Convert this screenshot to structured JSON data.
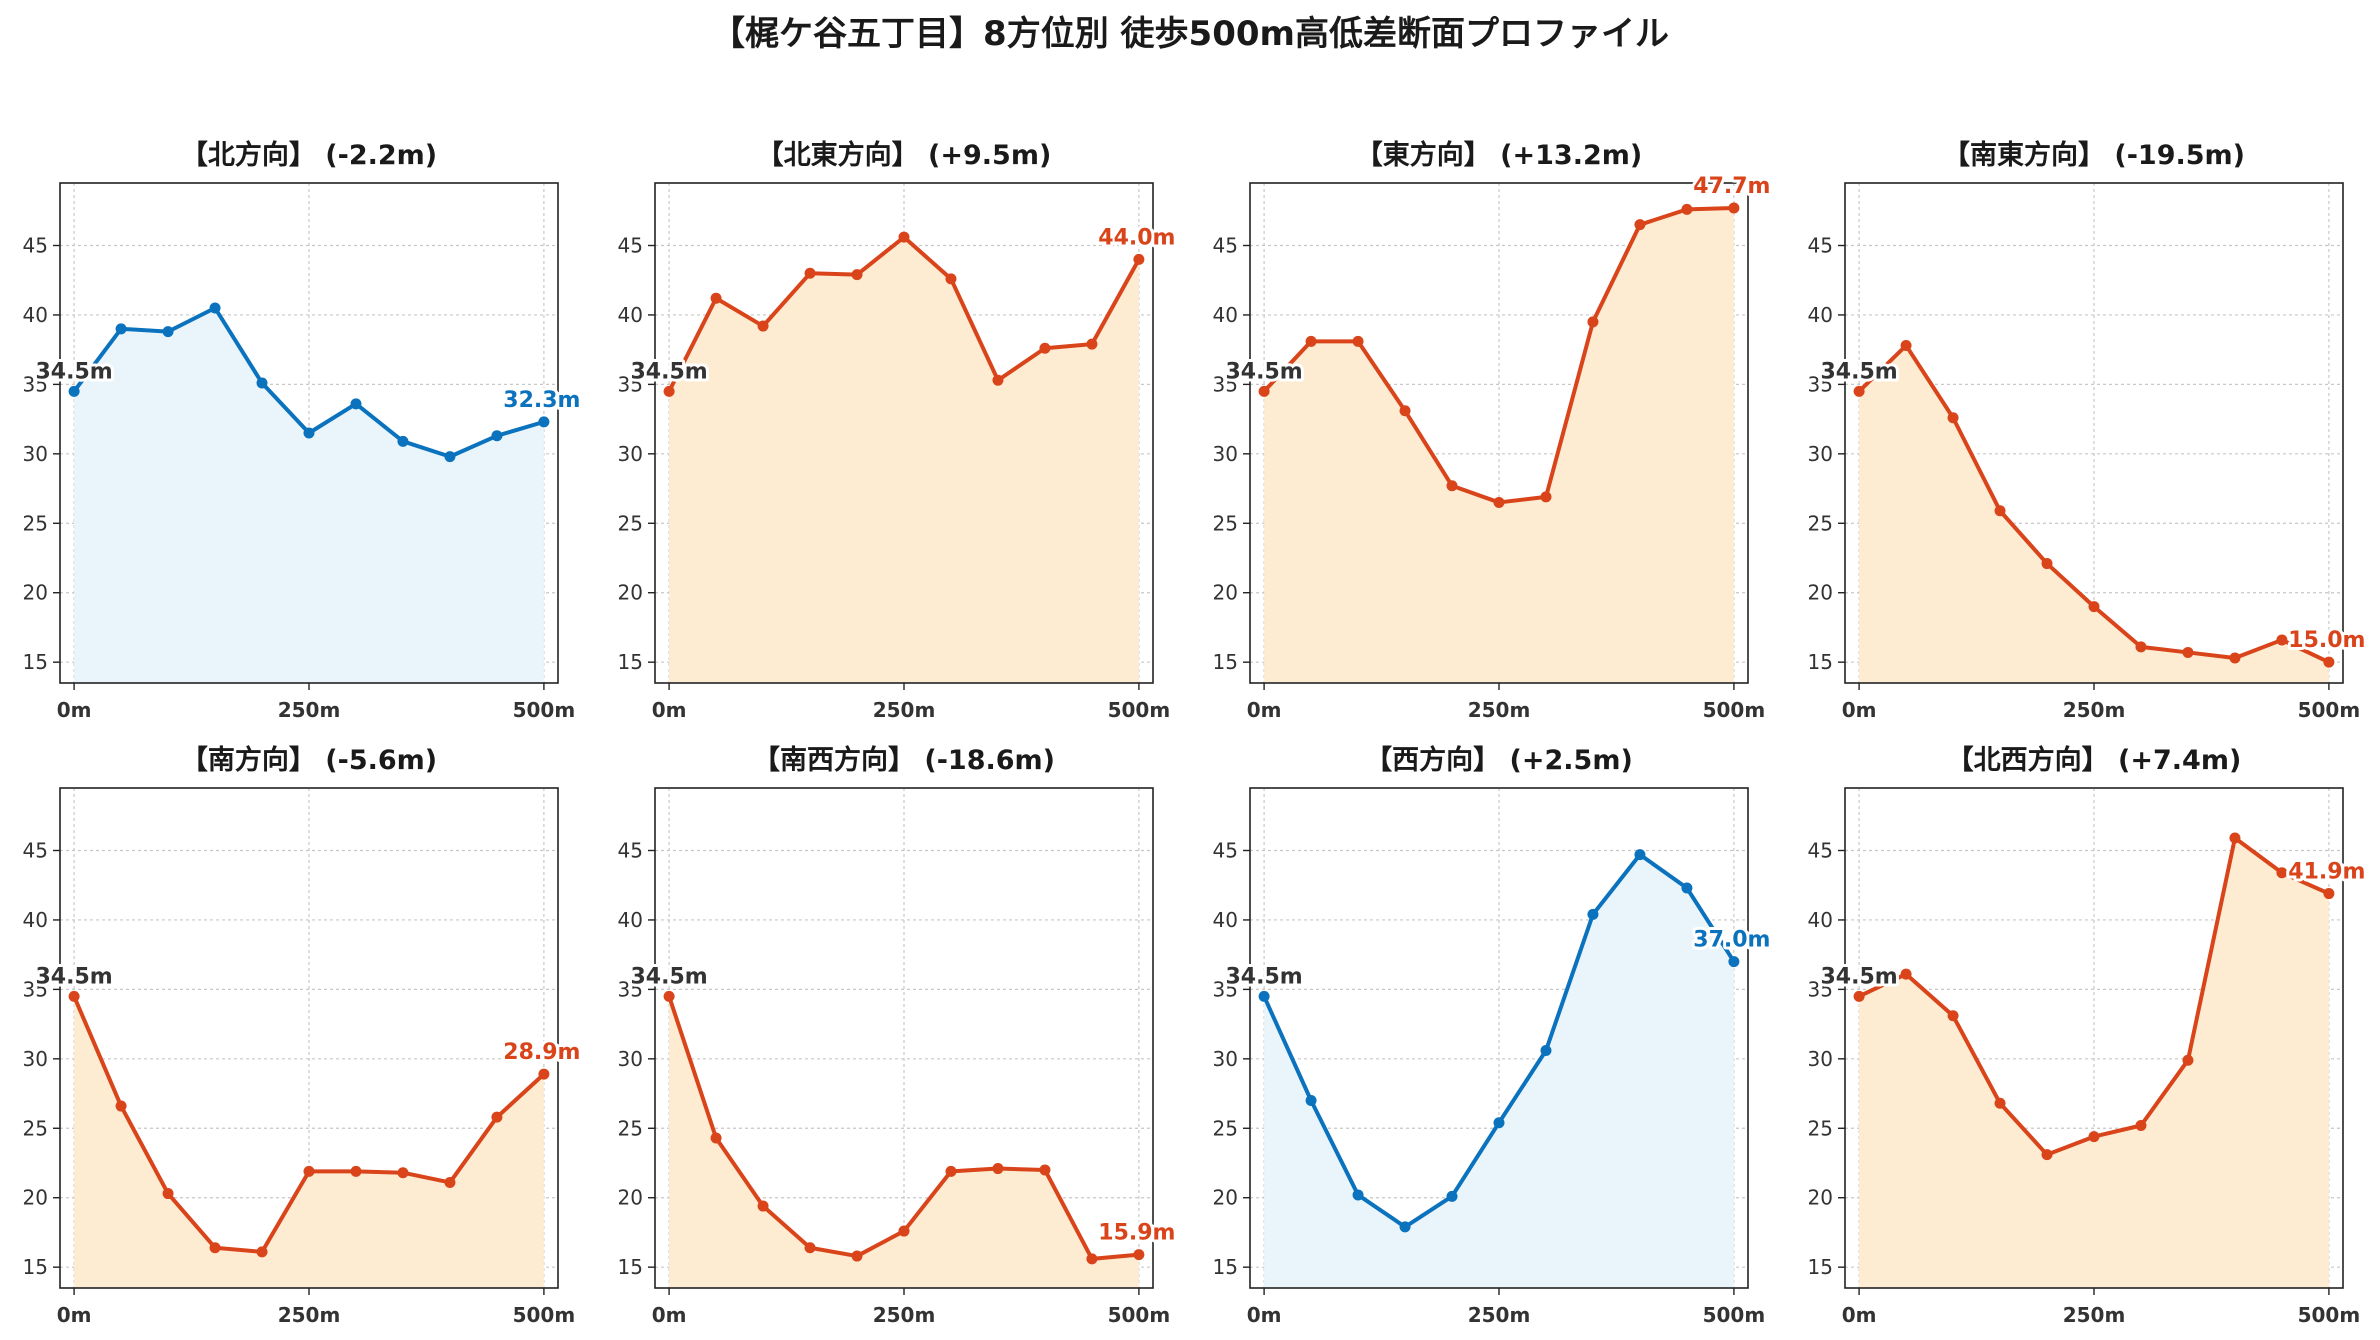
{
  "title": "【梶ケ谷五丁目】8方位別 徒歩500m高低差断面プロファイル",
  "colors": {
    "up_line": "#d9441a",
    "up_fill": "#fdecd2",
    "down_line": "#0b72bd",
    "down_fill": "#e9f5fb",
    "start_label": "#333333",
    "grid": "#c8c8c8"
  },
  "chart_data": [
    {
      "type": "line",
      "title": "【北方向】 (-2.2m)",
      "x": [
        0,
        50,
        100,
        150,
        200,
        250,
        300,
        350,
        400,
        450,
        500
      ],
      "values": [
        34.5,
        39.0,
        38.8,
        40.5,
        35.1,
        31.5,
        33.6,
        30.9,
        29.8,
        31.3,
        32.3
      ],
      "start_label": "34.5m",
      "end_label": "32.3m",
      "style": "down",
      "xticks": [
        "0m",
        "250m",
        "500m"
      ],
      "yticks": [
        "15",
        "20",
        "25",
        "30",
        "35",
        "40",
        "45"
      ],
      "ylim": [
        13.5,
        49.5
      ],
      "xlim": [
        -15,
        515
      ],
      "grid": true
    },
    {
      "type": "line",
      "title": "【北東方向】 (+9.5m)",
      "x": [
        0,
        50,
        100,
        150,
        200,
        250,
        300,
        350,
        400,
        450,
        500
      ],
      "values": [
        34.5,
        41.2,
        39.2,
        43.0,
        42.9,
        45.6,
        42.6,
        35.3,
        37.6,
        37.9,
        44.0
      ],
      "start_label": "34.5m",
      "end_label": "44.0m",
      "style": "up",
      "xticks": [
        "0m",
        "250m",
        "500m"
      ],
      "yticks": [
        "15",
        "20",
        "25",
        "30",
        "35",
        "40",
        "45"
      ],
      "ylim": [
        13.5,
        49.5
      ],
      "xlim": [
        -15,
        515
      ],
      "grid": true
    },
    {
      "type": "line",
      "title": "【東方向】 (+13.2m)",
      "x": [
        0,
        50,
        100,
        150,
        200,
        250,
        300,
        350,
        400,
        450,
        500
      ],
      "values": [
        34.5,
        38.1,
        38.1,
        33.1,
        27.7,
        26.5,
        26.9,
        39.5,
        46.5,
        47.6,
        47.7
      ],
      "start_label": "34.5m",
      "end_label": "47.7m",
      "style": "up",
      "xticks": [
        "0m",
        "250m",
        "500m"
      ],
      "yticks": [
        "15",
        "20",
        "25",
        "30",
        "35",
        "40",
        "45"
      ],
      "ylim": [
        13.5,
        49.5
      ],
      "xlim": [
        -15,
        515
      ],
      "grid": true
    },
    {
      "type": "line",
      "title": "【南東方向】 (-19.5m)",
      "x": [
        0,
        50,
        100,
        150,
        200,
        250,
        300,
        350,
        400,
        450,
        500
      ],
      "values": [
        34.5,
        37.8,
        32.6,
        25.9,
        22.1,
        19.0,
        16.1,
        15.7,
        15.3,
        16.6,
        15.0
      ],
      "start_label": "34.5m",
      "end_label": "15.0m",
      "style": "up",
      "xticks": [
        "0m",
        "250m",
        "500m"
      ],
      "yticks": [
        "15",
        "20",
        "25",
        "30",
        "35",
        "40",
        "45"
      ],
      "ylim": [
        13.5,
        49.5
      ],
      "xlim": [
        -15,
        515
      ],
      "grid": true
    },
    {
      "type": "line",
      "title": "【南方向】 (-5.6m)",
      "x": [
        0,
        50,
        100,
        150,
        200,
        250,
        300,
        350,
        400,
        450,
        500
      ],
      "values": [
        34.5,
        26.6,
        20.3,
        16.4,
        16.1,
        21.9,
        21.9,
        21.8,
        21.1,
        25.8,
        28.9
      ],
      "start_label": "34.5m",
      "end_label": "28.9m",
      "style": "up",
      "xticks": [
        "0m",
        "250m",
        "500m"
      ],
      "yticks": [
        "15",
        "20",
        "25",
        "30",
        "35",
        "40",
        "45"
      ],
      "ylim": [
        13.5,
        49.5
      ],
      "xlim": [
        -15,
        515
      ],
      "grid": true
    },
    {
      "type": "line",
      "title": "【南西方向】 (-18.6m)",
      "x": [
        0,
        50,
        100,
        150,
        200,
        250,
        300,
        350,
        400,
        450,
        500
      ],
      "values": [
        34.5,
        24.3,
        19.4,
        16.4,
        15.8,
        17.6,
        21.9,
        22.1,
        22.0,
        15.6,
        15.9
      ],
      "start_label": "34.5m",
      "end_label": "15.9m",
      "style": "up",
      "xticks": [
        "0m",
        "250m",
        "500m"
      ],
      "yticks": [
        "15",
        "20",
        "25",
        "30",
        "35",
        "40",
        "45"
      ],
      "ylim": [
        13.5,
        49.5
      ],
      "xlim": [
        -15,
        515
      ],
      "grid": true
    },
    {
      "type": "line",
      "title": "【西方向】 (+2.5m)",
      "x": [
        0,
        50,
        100,
        150,
        200,
        250,
        300,
        350,
        400,
        450,
        500
      ],
      "values": [
        34.5,
        27.0,
        20.2,
        17.9,
        20.1,
        25.4,
        30.6,
        40.4,
        44.7,
        42.3,
        37.0
      ],
      "start_label": "34.5m",
      "end_label": "37.0m",
      "style": "down",
      "xticks": [
        "0m",
        "250m",
        "500m"
      ],
      "yticks": [
        "15",
        "20",
        "25",
        "30",
        "35",
        "40",
        "45"
      ],
      "ylim": [
        13.5,
        49.5
      ],
      "xlim": [
        -15,
        515
      ],
      "grid": true
    },
    {
      "type": "line",
      "title": "【北西方向】 (+7.4m)",
      "x": [
        0,
        50,
        100,
        150,
        200,
        250,
        300,
        350,
        400,
        450,
        500
      ],
      "values": [
        34.5,
        36.1,
        33.1,
        26.8,
        23.1,
        24.4,
        25.2,
        29.9,
        45.9,
        43.4,
        41.9
      ],
      "start_label": "34.5m",
      "end_label": "41.9m",
      "style": "up",
      "xticks": [
        "0m",
        "250m",
        "500m"
      ],
      "yticks": [
        "15",
        "20",
        "25",
        "30",
        "35",
        "40",
        "45"
      ],
      "ylim": [
        13.5,
        49.5
      ],
      "xlim": [
        -15,
        515
      ],
      "grid": true
    }
  ]
}
